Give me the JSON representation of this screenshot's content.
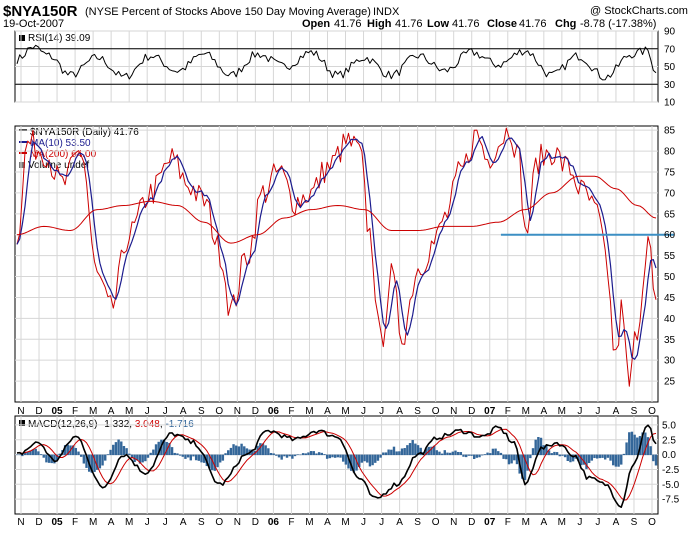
{
  "header": {
    "symbol": "$NYA150R",
    "description": "(NYSE Percent of Stocks Above 150 Day Moving Average)",
    "exchange": "INDX",
    "date": "19-Oct-2007",
    "credit": "@ StockCharts.com",
    "ohlc": {
      "open_label": "Open",
      "open": "41.76",
      "high_label": "High",
      "high": "41.76",
      "low_label": "Low",
      "low": "41.76",
      "close_label": "Close",
      "close": "41.76",
      "chg_label": "Chg",
      "chg": "-8.78 (-17.38%)"
    }
  },
  "colors": {
    "price": "#000000",
    "ma10": "#1c1c8e",
    "ma200": "#cc0000",
    "signal": "#cc0000",
    "histogram": "#336699",
    "hline": "#3c8fc4",
    "grid": "#d6d6d6"
  },
  "chart_data": [
    {
      "type": "line",
      "panel": "RSI",
      "legend": "RSI(14) 39.09",
      "ylim": [
        10,
        90
      ],
      "yticks": [
        90,
        70,
        50,
        30,
        10
      ],
      "reference_lines": [
        70,
        30
      ],
      "n": 240,
      "anchors": [
        [
          0,
          58
        ],
        [
          6,
          72
        ],
        [
          12,
          62
        ],
        [
          20,
          40
        ],
        [
          30,
          60
        ],
        [
          40,
          38
        ],
        [
          50,
          62
        ],
        [
          60,
          45
        ],
        [
          70,
          64
        ],
        [
          80,
          40
        ],
        [
          90,
          64
        ],
        [
          100,
          50
        ],
        [
          110,
          66
        ],
        [
          120,
          40
        ],
        [
          130,
          60
        ],
        [
          140,
          40
        ],
        [
          150,
          62
        ],
        [
          160,
          45
        ],
        [
          170,
          66
        ],
        [
          180,
          52
        ],
        [
          190,
          68
        ],
        [
          200,
          40
        ],
        [
          210,
          62
        ],
        [
          220,
          38
        ],
        [
          230,
          64
        ],
        [
          236,
          68
        ],
        [
          239,
          42
        ]
      ]
    },
    {
      "type": "line",
      "panel": "Price",
      "legend": [
        "$NYA150R (Daily) 41.76",
        "MA(10) 53.50",
        "MA(200) 64.00",
        "Volume undef"
      ],
      "ylim": [
        20,
        86
      ],
      "yticks": [
        85,
        80,
        75,
        70,
        65,
        60,
        55,
        50,
        45,
        40,
        35,
        30,
        25
      ],
      "horizontal_line": 60,
      "n": 240,
      "series_price_anchors": [
        [
          0,
          60
        ],
        [
          4,
          82
        ],
        [
          10,
          80
        ],
        [
          17,
          72
        ],
        [
          24,
          80
        ],
        [
          30,
          50
        ],
        [
          35,
          42
        ],
        [
          42,
          60
        ],
        [
          50,
          70
        ],
        [
          58,
          78
        ],
        [
          64,
          72
        ],
        [
          70,
          68
        ],
        [
          76,
          56
        ],
        [
          80,
          42
        ],
        [
          86,
          55
        ],
        [
          92,
          70
        ],
        [
          98,
          75
        ],
        [
          104,
          68
        ],
        [
          110,
          70
        ],
        [
          116,
          76
        ],
        [
          124,
          82
        ],
        [
          128,
          80
        ],
        [
          132,
          60
        ],
        [
          136,
          34
        ],
        [
          140,
          50
        ],
        [
          144,
          36
        ],
        [
          150,
          52
        ],
        [
          156,
          58
        ],
        [
          160,
          64
        ],
        [
          166,
          75
        ],
        [
          172,
          84
        ],
        [
          176,
          78
        ],
        [
          180,
          82
        ],
        [
          184,
          86
        ],
        [
          188,
          78
        ],
        [
          190,
          60
        ],
        [
          195,
          78
        ],
        [
          200,
          80
        ],
        [
          206,
          76
        ],
        [
          212,
          70
        ],
        [
          217,
          65
        ],
        [
          220,
          55
        ],
        [
          224,
          30
        ],
        [
          226,
          42
        ],
        [
          229,
          24
        ],
        [
          232,
          38
        ],
        [
          236,
          59
        ],
        [
          239,
          42
        ]
      ],
      "series_ma200_anchors": [
        [
          0,
          60
        ],
        [
          10,
          62
        ],
        [
          20,
          61
        ],
        [
          30,
          66
        ],
        [
          40,
          67
        ],
        [
          50,
          68
        ],
        [
          60,
          67
        ],
        [
          70,
          63
        ],
        [
          80,
          58
        ],
        [
          90,
          60
        ],
        [
          100,
          64
        ],
        [
          110,
          66
        ],
        [
          120,
          67
        ],
        [
          130,
          66
        ],
        [
          140,
          61
        ],
        [
          150,
          61
        ],
        [
          160,
          62
        ],
        [
          170,
          62
        ],
        [
          180,
          63
        ],
        [
          190,
          66
        ],
        [
          200,
          70
        ],
        [
          210,
          74
        ],
        [
          216,
          74
        ],
        [
          224,
          71
        ],
        [
          232,
          67
        ],
        [
          239,
          64
        ]
      ]
    },
    {
      "type": "line",
      "panel": "MACD",
      "legend": [
        "MACD(12,26,9)",
        "1.332",
        "3.048",
        "-1.716"
      ],
      "ylim": [
        -10,
        6.5
      ],
      "yticks": [
        5.0,
        2.5,
        0.0,
        -2.5,
        -5.0,
        -7.5
      ],
      "n": 240,
      "anchors": [
        [
          0,
          0
        ],
        [
          8,
          2
        ],
        [
          14,
          -1
        ],
        [
          22,
          3
        ],
        [
          32,
          -5.5
        ],
        [
          40,
          0
        ],
        [
          48,
          -3
        ],
        [
          58,
          3.5
        ],
        [
          66,
          2
        ],
        [
          76,
          -5
        ],
        [
          86,
          0
        ],
        [
          94,
          4
        ],
        [
          104,
          2.5
        ],
        [
          112,
          4
        ],
        [
          120,
          3
        ],
        [
          128,
          -4
        ],
        [
          134,
          -7.5
        ],
        [
          142,
          -5
        ],
        [
          150,
          0
        ],
        [
          158,
          3
        ],
        [
          166,
          4
        ],
        [
          174,
          3
        ],
        [
          180,
          4.5
        ],
        [
          186,
          2
        ],
        [
          190,
          -5
        ],
        [
          196,
          1
        ],
        [
          202,
          2
        ],
        [
          208,
          0
        ],
        [
          214,
          -4
        ],
        [
          220,
          -5
        ],
        [
          226,
          -8.5
        ],
        [
          230,
          -2
        ],
        [
          236,
          4.8
        ],
        [
          239,
          2
        ]
      ]
    }
  ],
  "x_axis_labels": [
    "N",
    "D",
    "05",
    "F",
    "M",
    "A",
    "M",
    "J",
    "J",
    "A",
    "S",
    "O",
    "N",
    "D",
    "06",
    "F",
    "M",
    "A",
    "M",
    "J",
    "J",
    "A",
    "S",
    "O",
    "N",
    "D",
    "07",
    "F",
    "M",
    "A",
    "M",
    "J",
    "J",
    "A",
    "S",
    "O"
  ]
}
